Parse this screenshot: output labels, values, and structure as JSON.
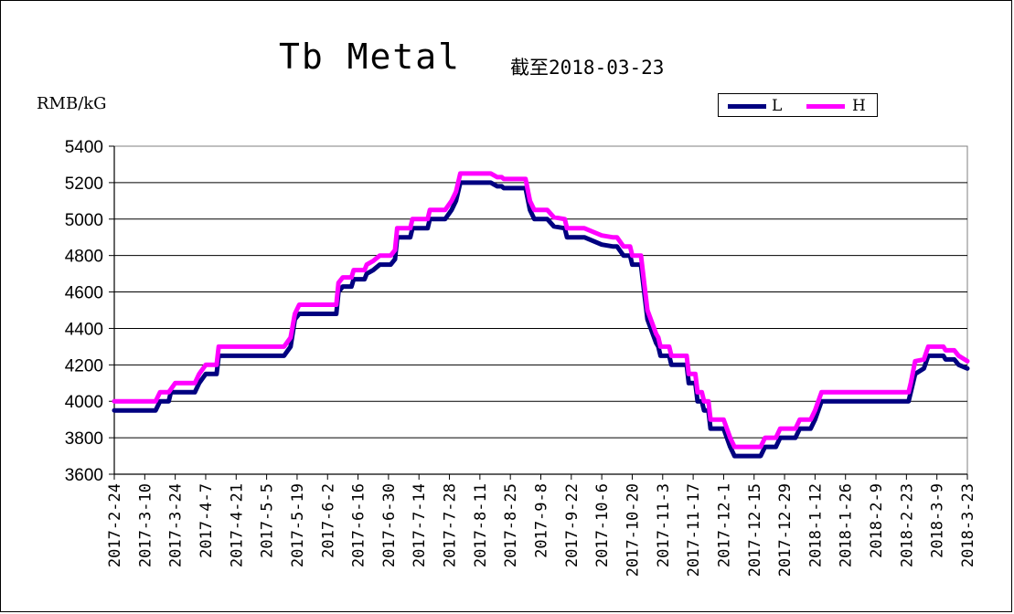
{
  "chart_data": {
    "type": "line",
    "title": "Tb Metal",
    "subtitle": "截至2018-03-23",
    "ylabel": "RMB/kG",
    "ylim": [
      3600,
      5400
    ],
    "yticks": [
      3600,
      3800,
      4000,
      4200,
      4400,
      4600,
      4800,
      5000,
      5200,
      5400
    ],
    "xrange": [
      "2017-02-24",
      "2018-03-23"
    ],
    "xticks": [
      "2017-2-24",
      "2017-3-10",
      "2017-3-24",
      "2017-4-7",
      "2017-4-21",
      "2017-5-5",
      "2017-5-19",
      "2017-6-2",
      "2017-6-16",
      "2017-6-30",
      "2017-7-14",
      "2017-7-28",
      "2017-8-11",
      "2017-8-25",
      "2017-9-8",
      "2017-9-22",
      "2017-10-6",
      "2017-10-20",
      "2017-11-3",
      "2017-11-17",
      "2017-12-1",
      "2017-12-15",
      "2017-12-29",
      "2018-1-12",
      "2018-1-26",
      "2018-2-9",
      "2018-2-23",
      "2018-3-9",
      "2018-3-23"
    ],
    "grid": true,
    "legend_position": "top-right",
    "series": [
      {
        "name": "L",
        "color": "#000080",
        "points": [
          [
            "2017-02-24",
            3950
          ],
          [
            "2017-03-15",
            3950
          ],
          [
            "2017-03-17",
            4000
          ],
          [
            "2017-03-21",
            4000
          ],
          [
            "2017-03-22",
            4050
          ],
          [
            "2017-04-02",
            4050
          ],
          [
            "2017-04-04",
            4100
          ],
          [
            "2017-04-07",
            4150
          ],
          [
            "2017-04-12",
            4150
          ],
          [
            "2017-04-13",
            4250
          ],
          [
            "2017-05-13",
            4250
          ],
          [
            "2017-05-16",
            4300
          ],
          [
            "2017-05-18",
            4450
          ],
          [
            "2017-05-20",
            4480
          ],
          [
            "2017-06-06",
            4480
          ],
          [
            "2017-06-07",
            4600
          ],
          [
            "2017-06-09",
            4630
          ],
          [
            "2017-06-13",
            4630
          ],
          [
            "2017-06-14",
            4670
          ],
          [
            "2017-06-19",
            4670
          ],
          [
            "2017-06-20",
            4700
          ],
          [
            "2017-06-23",
            4720
          ],
          [
            "2017-06-26",
            4750
          ],
          [
            "2017-07-01",
            4750
          ],
          [
            "2017-07-03",
            4780
          ],
          [
            "2017-07-04",
            4900
          ],
          [
            "2017-07-10",
            4900
          ],
          [
            "2017-07-11",
            4950
          ],
          [
            "2017-07-18",
            4950
          ],
          [
            "2017-07-19",
            5000
          ],
          [
            "2017-07-26",
            5000
          ],
          [
            "2017-07-29",
            5050
          ],
          [
            "2017-07-31",
            5100
          ],
          [
            "2017-08-02",
            5200
          ],
          [
            "2017-08-16",
            5200
          ],
          [
            "2017-08-19",
            5180
          ],
          [
            "2017-08-21",
            5180
          ],
          [
            "2017-08-22",
            5170
          ],
          [
            "2017-09-01",
            5170
          ],
          [
            "2017-09-03",
            5050
          ],
          [
            "2017-09-05",
            5000
          ],
          [
            "2017-09-11",
            5000
          ],
          [
            "2017-09-14",
            4960
          ],
          [
            "2017-09-19",
            4950
          ],
          [
            "2017-09-20",
            4900
          ],
          [
            "2017-09-28",
            4900
          ],
          [
            "2017-10-06",
            4860
          ],
          [
            "2017-10-11",
            4850
          ],
          [
            "2017-10-13",
            4850
          ],
          [
            "2017-10-16",
            4800
          ],
          [
            "2017-10-19",
            4800
          ],
          [
            "2017-10-20",
            4750
          ],
          [
            "2017-10-24",
            4750
          ],
          [
            "2017-10-27",
            4450
          ],
          [
            "2017-10-31",
            4320
          ],
          [
            "2017-11-01",
            4300
          ],
          [
            "2017-11-02",
            4250
          ],
          [
            "2017-11-06",
            4250
          ],
          [
            "2017-11-07",
            4200
          ],
          [
            "2017-11-14",
            4200
          ],
          [
            "2017-11-15",
            4100
          ],
          [
            "2017-11-18",
            4100
          ],
          [
            "2017-11-19",
            4000
          ],
          [
            "2017-11-21",
            4000
          ],
          [
            "2017-11-22",
            3950
          ],
          [
            "2017-11-24",
            3950
          ],
          [
            "2017-11-25",
            3850
          ],
          [
            "2017-12-01",
            3850
          ],
          [
            "2017-12-04",
            3750
          ],
          [
            "2017-12-06",
            3700
          ],
          [
            "2017-12-18",
            3700
          ],
          [
            "2017-12-20",
            3750
          ],
          [
            "2017-12-25",
            3750
          ],
          [
            "2017-12-27",
            3800
          ],
          [
            "2018-01-03",
            3800
          ],
          [
            "2018-01-05",
            3850
          ],
          [
            "2018-01-10",
            3850
          ],
          [
            "2018-01-12",
            3900
          ],
          [
            "2018-01-15",
            4000
          ],
          [
            "2018-02-24",
            4000
          ],
          [
            "2018-02-25",
            4050
          ],
          [
            "2018-02-27",
            4150
          ],
          [
            "2018-03-03",
            4180
          ],
          [
            "2018-03-05",
            4250
          ],
          [
            "2018-03-12",
            4250
          ],
          [
            "2018-03-13",
            4230
          ],
          [
            "2018-03-17",
            4230
          ],
          [
            "2018-03-19",
            4200
          ],
          [
            "2018-03-23",
            4180
          ]
        ]
      },
      {
        "name": "H",
        "color": "#ff00ff",
        "points": [
          [
            "2017-02-24",
            4000
          ],
          [
            "2017-03-15",
            4000
          ],
          [
            "2017-03-17",
            4050
          ],
          [
            "2017-03-21",
            4050
          ],
          [
            "2017-03-24",
            4100
          ],
          [
            "2017-04-02",
            4100
          ],
          [
            "2017-04-04",
            4150
          ],
          [
            "2017-04-07",
            4200
          ],
          [
            "2017-04-12",
            4200
          ],
          [
            "2017-04-13",
            4300
          ],
          [
            "2017-05-13",
            4300
          ],
          [
            "2017-05-16",
            4350
          ],
          [
            "2017-05-18",
            4480
          ],
          [
            "2017-05-20",
            4530
          ],
          [
            "2017-06-06",
            4530
          ],
          [
            "2017-06-07",
            4650
          ],
          [
            "2017-06-09",
            4680
          ],
          [
            "2017-06-13",
            4680
          ],
          [
            "2017-06-14",
            4720
          ],
          [
            "2017-06-19",
            4720
          ],
          [
            "2017-06-20",
            4750
          ],
          [
            "2017-06-23",
            4770
          ],
          [
            "2017-06-26",
            4800
          ],
          [
            "2017-07-01",
            4800
          ],
          [
            "2017-07-03",
            4830
          ],
          [
            "2017-07-04",
            4950
          ],
          [
            "2017-07-10",
            4950
          ],
          [
            "2017-07-11",
            5000
          ],
          [
            "2017-07-18",
            5000
          ],
          [
            "2017-07-19",
            5050
          ],
          [
            "2017-07-26",
            5050
          ],
          [
            "2017-07-29",
            5100
          ],
          [
            "2017-07-31",
            5150
          ],
          [
            "2017-08-02",
            5250
          ],
          [
            "2017-08-16",
            5250
          ],
          [
            "2017-08-19",
            5230
          ],
          [
            "2017-08-21",
            5230
          ],
          [
            "2017-08-22",
            5220
          ],
          [
            "2017-09-01",
            5220
          ],
          [
            "2017-09-03",
            5100
          ],
          [
            "2017-09-05",
            5050
          ],
          [
            "2017-09-11",
            5050
          ],
          [
            "2017-09-14",
            5010
          ],
          [
            "2017-09-19",
            5000
          ],
          [
            "2017-09-20",
            4950
          ],
          [
            "2017-09-28",
            4950
          ],
          [
            "2017-10-06",
            4910
          ],
          [
            "2017-10-11",
            4900
          ],
          [
            "2017-10-13",
            4900
          ],
          [
            "2017-10-16",
            4850
          ],
          [
            "2017-10-19",
            4850
          ],
          [
            "2017-10-20",
            4800
          ],
          [
            "2017-10-24",
            4800
          ],
          [
            "2017-10-27",
            4500
          ],
          [
            "2017-10-31",
            4370
          ],
          [
            "2017-11-01",
            4350
          ],
          [
            "2017-11-02",
            4300
          ],
          [
            "2017-11-06",
            4300
          ],
          [
            "2017-11-07",
            4250
          ],
          [
            "2017-11-14",
            4250
          ],
          [
            "2017-11-15",
            4150
          ],
          [
            "2017-11-18",
            4150
          ],
          [
            "2017-11-19",
            4050
          ],
          [
            "2017-11-21",
            4050
          ],
          [
            "2017-11-22",
            4000
          ],
          [
            "2017-11-24",
            4000
          ],
          [
            "2017-11-25",
            3900
          ],
          [
            "2017-12-01",
            3900
          ],
          [
            "2017-12-04",
            3800
          ],
          [
            "2017-12-06",
            3750
          ],
          [
            "2017-12-18",
            3750
          ],
          [
            "2017-12-20",
            3800
          ],
          [
            "2017-12-25",
            3800
          ],
          [
            "2017-12-27",
            3850
          ],
          [
            "2018-01-03",
            3850
          ],
          [
            "2018-01-05",
            3900
          ],
          [
            "2018-01-10",
            3900
          ],
          [
            "2018-01-12",
            3950
          ],
          [
            "2018-01-15",
            4050
          ],
          [
            "2018-02-24",
            4050
          ],
          [
            "2018-02-25",
            4100
          ],
          [
            "2018-02-27",
            4220
          ],
          [
            "2018-03-03",
            4230
          ],
          [
            "2018-03-05",
            4300
          ],
          [
            "2018-03-12",
            4300
          ],
          [
            "2018-03-13",
            4280
          ],
          [
            "2018-03-17",
            4280
          ],
          [
            "2018-03-19",
            4250
          ],
          [
            "2018-03-23",
            4220
          ]
        ]
      }
    ]
  }
}
